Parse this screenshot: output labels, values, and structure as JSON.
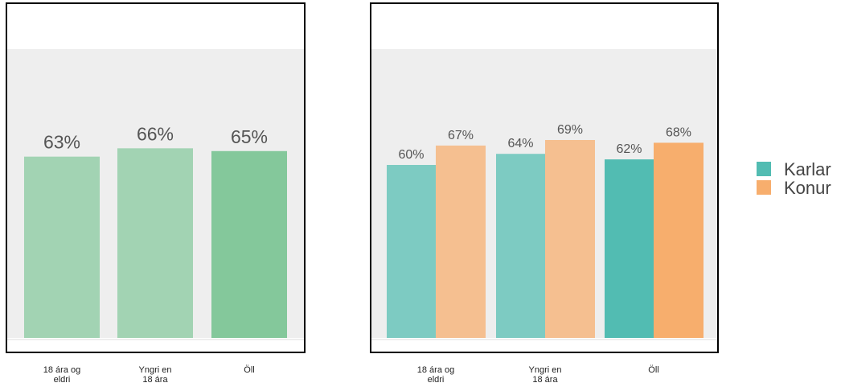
{
  "chart_data": [
    {
      "type": "bar",
      "categories": [
        [
          "18 ára og",
          "eldri"
        ],
        [
          "Yngri en",
          "18 ára"
        ],
        [
          "Öll"
        ]
      ],
      "values": [
        63,
        66,
        65
      ],
      "value_labels": [
        "63%",
        "66%",
        "65%"
      ],
      "colors": [
        "#a2d3b3",
        "#a2d3b3",
        "#84c89b"
      ],
      "ylim": [
        0,
        100
      ],
      "grid": false
    },
    {
      "type": "bar",
      "categories": [
        [
          "18 ára og",
          "eldri"
        ],
        [
          "Yngri en",
          "18 ára"
        ],
        [
          "Öll"
        ]
      ],
      "series": [
        {
          "name": "Karlar",
          "values": [
            60,
            64,
            62
          ],
          "value_labels": [
            "60%",
            "64%",
            "62%"
          ],
          "colors": [
            "#7dcbc2",
            "#7dcbc2",
            "#52bcb2"
          ]
        },
        {
          "name": "Konur",
          "values": [
            67,
            69,
            68
          ],
          "value_labels": [
            "67%",
            "69%",
            "68%"
          ],
          "colors": [
            "#f5bf90",
            "#f5bf90",
            "#f7ae6d"
          ]
        }
      ],
      "ylim": [
        0,
        100
      ],
      "grid": false,
      "legend_position": "right"
    }
  ],
  "legend": {
    "items": [
      {
        "label": "Karlar",
        "color": "#52bcb2"
      },
      {
        "label": "Konur",
        "color": "#f7ae6d"
      }
    ]
  }
}
